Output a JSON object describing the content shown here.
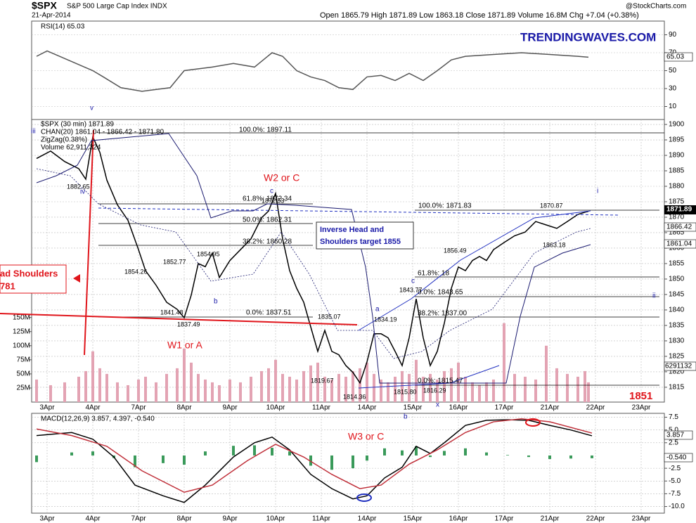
{
  "header": {
    "symbol": "$SPX",
    "name": "S&P 500 Large Cap Index INDX",
    "date": "21-Apr-2014",
    "quote": "Open 1865.79  High 1871.89  Low 1863.18  Close 1871.89  Volume 16.8M  Chg +7.04 (+0.38%)",
    "source": "@StockCharts.com"
  },
  "chart_data": [
    {
      "type": "line",
      "title": "RSI(14) 65.03",
      "xlim": [
        0,
        178
      ],
      "ylim": [
        -4.5,
        105.3
      ],
      "yticks": [
        10,
        30,
        50,
        70,
        90
      ],
      "grid": true,
      "series": [
        {
          "color": "#555555",
          "x": [
            0,
            3,
            16,
            19,
            24,
            30,
            38,
            42,
            50,
            56,
            62,
            67,
            70,
            74,
            78,
            82,
            86,
            90,
            94,
            98,
            102,
            106,
            110,
            114,
            118,
            122,
            130,
            138,
            146,
            154,
            157
          ],
          "values": [
            66,
            72,
            50,
            43,
            31,
            27,
            31,
            50,
            54,
            58,
            54,
            70,
            66,
            50,
            43,
            39,
            31,
            29,
            43,
            44.7,
            39,
            47,
            39,
            50,
            62,
            66,
            68,
            70,
            68,
            66,
            65.03
          ]
        }
      ]
    },
    {
      "type": "line",
      "xlim": [
        0,
        178
      ],
      "ylim": [
        1810.2,
        1901.6
      ],
      "yticks": [
        1815,
        1820,
        1825,
        1830,
        1835,
        1840,
        1845,
        1850,
        1855,
        1860,
        1865,
        1870,
        1875,
        1880,
        1885,
        1890,
        1895,
        1900
      ],
      "y2lim": [
        0,
        501250000
      ],
      "y2ticks": [
        {
          "value": 25000000,
          "label": "25M"
        },
        {
          "value": 50000000,
          "label": "50M"
        },
        {
          "value": 75000000,
          "label": "75M"
        },
        {
          "value": 100000000,
          "label": "100M"
        },
        {
          "value": 125000000,
          "label": "125M"
        },
        {
          "value": 150000000,
          "label": "150M"
        }
      ],
      "xticks": [
        {
          "value": 3,
          "label": "3Apr"
        },
        {
          "value": 16,
          "label": "4Apr"
        },
        {
          "value": 29,
          "label": "7Apr"
        },
        {
          "value": 42,
          "label": "8Apr"
        },
        {
          "value": 55,
          "label": "9Apr"
        },
        {
          "value": 68,
          "label": "10Apr"
        },
        {
          "value": 81,
          "label": "11Apr"
        },
        {
          "value": 94,
          "label": "14Apr"
        },
        {
          "value": 107,
          "label": "15Apr"
        },
        {
          "value": 120,
          "label": "16Apr"
        },
        {
          "value": 133,
          "label": "17Apr"
        },
        {
          "value": 146,
          "label": "21Apr"
        },
        {
          "value": 159,
          "label": "22Apr"
        },
        {
          "value": 172,
          "label": "23Apr"
        }
      ],
      "grid": true,
      "indicators": [
        "CHAN(20) 1861.04 - 1866.42 - 1871.80",
        "ZigZag(0.38%)"
      ],
      "x": [
        0,
        4,
        8,
        12,
        14,
        16,
        18,
        20,
        23,
        26,
        29,
        31,
        34,
        37,
        40,
        42,
        44,
        46,
        48,
        50,
        52,
        55,
        58,
        61,
        64,
        66,
        68,
        70,
        72,
        74,
        76,
        78,
        80,
        82,
        84,
        86,
        88,
        90,
        92,
        94,
        96,
        98,
        100,
        102,
        104,
        106,
        108,
        110,
        112,
        114,
        116,
        118,
        120,
        122,
        124,
        126,
        128,
        130,
        133,
        136,
        139,
        142,
        145,
        148,
        151,
        154,
        156,
        157
      ],
      "series": [
        {
          "name": "$SPX (30 min) 1871.89",
          "color": "#000000",
          "values": [
            1889,
            1891.4,
            1888,
            1885.7,
            1882.3,
            1896,
            1891,
            1882,
            1874,
            1869,
            1859.5,
            1852.7,
            1848,
            1842.5,
            1840.2,
            1837.5,
            1844.8,
            1855,
            1854,
            1858.4,
            1850.5,
            1856,
            1859.5,
            1863,
            1869.8,
            1872,
            1877.7,
            1863,
            1852.7,
            1847,
            1842.5,
            1834.5,
            1826.6,
            1833.4,
            1826.6,
            1825.5,
            1822,
            1819.8,
            1816.4,
            1823.2,
            1832.3,
            1832.3,
            1831,
            1826.6,
            1822,
            1831,
            1843.6,
            1831,
            1822,
            1826.6,
            1835.7,
            1847,
            1853.9,
            1852.7,
            1856,
            1857.3,
            1856,
            1859.5,
            1861.8,
            1864,
            1865.2,
            1868.6,
            1867.5,
            1866.4,
            1868.6,
            1870.9,
            1871.6,
            1871.89
          ]
        },
        {
          "name": "Volume 62,911,324",
          "color": "#e3a3b3",
          "type": "bar",
          "axis": "y2",
          "values": [
            40000000,
            30000000,
            35000000,
            45000000,
            55000000,
            90000000,
            60000000,
            50000000,
            35000000,
            30000000,
            40000000,
            45000000,
            35000000,
            50000000,
            60000000,
            95000000,
            70000000,
            50000000,
            40000000,
            35000000,
            30000000,
            40000000,
            35000000,
            45000000,
            55000000,
            60000000,
            75000000,
            50000000,
            45000000,
            40000000,
            55000000,
            65000000,
            70000000,
            45000000,
            40000000,
            50000000,
            45000000,
            55000000,
            60000000,
            70000000,
            50000000,
            40000000,
            35000000,
            45000000,
            55000000,
            50000000,
            75000000,
            45000000,
            50000000,
            40000000,
            55000000,
            60000000,
            70000000,
            45000000,
            35000000,
            30000000,
            35000000,
            40000000,
            140000000,
            50000000,
            45000000,
            40000000,
            100000000,
            60000000,
            50000000,
            45000000,
            55000000,
            35000000
          ]
        }
      ],
      "annotations": [
        "v",
        "iii",
        "1882.65",
        "iv",
        "100.0%: 1897.11",
        "W2 or C",
        "c",
        "61.8%: 1872.34",
        "1872.53",
        "50.0%: 1862.31",
        "38.2%: 1860.28",
        "1854.95",
        "1852.77",
        "1854.26",
        "1841.48",
        "1837.49",
        "b",
        "0.0%: 1837.51",
        "W1 or A",
        "ad Shoulders",
        "781",
        "Inverse Head and",
        "Shoulders target 1855",
        "1835.07",
        "1834.19",
        "a",
        "1819.67",
        "1814.36",
        "1815.80",
        "1816.29",
        "x",
        "1843.77",
        "c",
        "1856.49",
        "61.8%: 18",
        "0.0%: 1843.65",
        "38.2%: 1837.00",
        "0.0%: 1815.47",
        "100.0%: 1871.83",
        "1870.87",
        "1863.18",
        "i",
        "ii",
        "1851",
        "b",
        "W3 or C",
        "TRENDINGWAVES.COM",
        "1871.89",
        "1866.42",
        "1861.04",
        "6291132",
        "65.03",
        "3.857",
        "-0.540"
      ]
    },
    {
      "type": "line",
      "title": "MACD(12,26,9) 3.857, 4.397, -0.540",
      "xlim": [
        0,
        178
      ],
      "ylim": [
        -11.3,
        8.26
      ],
      "yticks": [
        {
          "value": -10,
          "label": "-10.0"
        },
        {
          "value": -7.5,
          "label": "-7.5"
        },
        {
          "value": -5,
          "label": "-5.0"
        },
        {
          "value": -2.5,
          "label": "-2.5"
        },
        {
          "value": 2.5,
          "label": "2.5"
        },
        {
          "value": 5,
          "label": "5.0"
        },
        7.5
      ],
      "xticks": [
        {
          "value": 3,
          "label": "3Apr"
        },
        {
          "value": 16,
          "label": "4Apr"
        },
        {
          "value": 29,
          "label": "7Apr"
        },
        {
          "value": 42,
          "label": "8Apr"
        },
        {
          "value": 55,
          "label": "9Apr"
        },
        {
          "value": 68,
          "label": "10Apr"
        },
        {
          "value": 81,
          "label": "11Apr"
        },
        {
          "value": 94,
          "label": "14Apr"
        },
        {
          "value": 107,
          "label": "15Apr"
        },
        {
          "value": 120,
          "label": "16Apr"
        },
        {
          "value": 133,
          "label": "17Apr"
        },
        {
          "value": 146,
          "label": "21Apr"
        },
        {
          "value": 159,
          "label": "22Apr"
        },
        {
          "value": 172,
          "label": "23Apr"
        }
      ],
      "grid": true,
      "series": [
        {
          "color": "#3a9a5a",
          "type": "bar",
          "x": [
            0,
            10,
            16,
            22,
            28,
            36,
            42,
            48,
            56,
            62,
            67,
            72,
            78,
            84,
            90,
            94,
            99,
            104,
            108,
            112,
            116,
            122,
            128,
            134,
            140,
            146,
            152,
            158
          ],
          "values": [
            -1.3,
            0.6,
            0.8,
            -0.5,
            -2.3,
            -1.5,
            -1.8,
            0.8,
            1.9,
            2.0,
            1.5,
            0.8,
            -2.0,
            -2.8,
            -2.5,
            -1.0,
            1.4,
            1.0,
            1.8,
            -0.3,
            0.9,
            1.4,
            0.6,
            0.1,
            -0.3,
            -0.7,
            -0.6,
            -0.54
          ]
        },
        {
          "color": "#000000",
          "x": [
            0,
            10,
            16,
            22,
            28,
            36,
            42,
            48,
            56,
            62,
            67,
            72,
            78,
            84,
            90,
            94,
            99,
            104,
            108,
            112,
            116,
            122,
            128,
            134,
            140,
            146,
            152,
            158
          ],
          "values": [
            3.9,
            4.5,
            3.2,
            -0.3,
            -5.8,
            -7.9,
            -9.2,
            -5.8,
            -0.3,
            2.5,
            3.6,
            1.1,
            -3.7,
            -6.5,
            -8.5,
            -7.9,
            -4.4,
            -2.3,
            1.8,
            0.4,
            2.5,
            5.9,
            6.9,
            7.0,
            6.9,
            5.9,
            5.0,
            3.857
          ]
        },
        {
          "color": "#c0303a",
          "x": [
            0,
            10,
            20,
            30,
            42,
            50,
            60,
            68,
            76,
            84,
            92,
            98,
            106,
            114,
            122,
            130,
            138,
            146,
            158
          ],
          "values": [
            5.2,
            3.9,
            1.8,
            -3.0,
            -7.2,
            -5.8,
            -1.0,
            2.2,
            -0.3,
            -3.7,
            -6.5,
            -5.8,
            -1.7,
            1.1,
            4.5,
            6.6,
            7.2,
            6.6,
            4.397
          ]
        }
      ]
    }
  ]
}
